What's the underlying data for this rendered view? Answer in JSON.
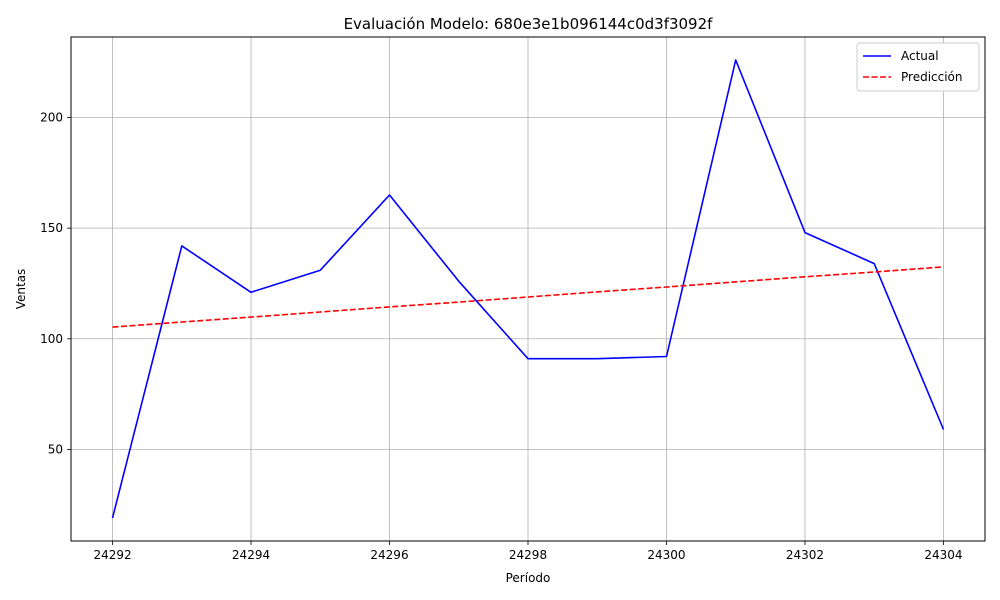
{
  "chart_data": {
    "type": "line",
    "title": "Evaluación Modelo: 680e3e1b096144c0d3f3092f",
    "xlabel": "Período",
    "ylabel": "Ventas",
    "x": [
      24292,
      24293,
      24294,
      24295,
      24296,
      24297,
      24298,
      24299,
      24300,
      24301,
      24302,
      24303,
      24304
    ],
    "series": [
      {
        "name": "Actual",
        "color": "#0000ff",
        "style": "solid",
        "values": [
          19,
          142,
          121,
          131,
          165,
          126,
          91,
          91,
          92,
          226,
          148,
          134,
          59
        ]
      },
      {
        "name": "Predicción",
        "color": "#ff0000",
        "style": "dashed",
        "values": [
          105.3,
          107.6,
          109.8,
          112.1,
          114.4,
          116.6,
          118.9,
          121.2,
          123.4,
          125.7,
          128.0,
          130.2,
          132.5
        ]
      }
    ],
    "xlim": [
      24291.4,
      24304.6
    ],
    "ylim": [
      8.6,
      236.4
    ],
    "xticks": [
      24292,
      24294,
      24296,
      24298,
      24300,
      24302,
      24304
    ],
    "yticks": [
      50,
      100,
      150,
      200
    ],
    "grid": true,
    "legend_position": "top-right"
  }
}
